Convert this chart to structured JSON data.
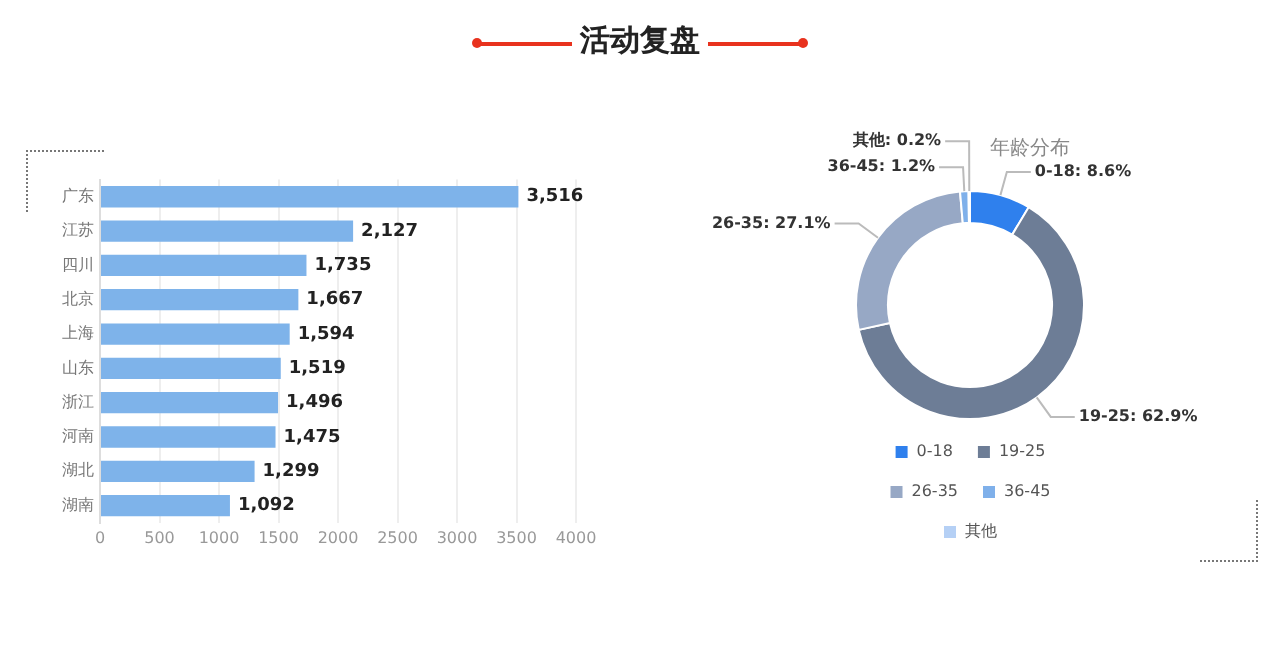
{
  "chart_data": [
    {
      "type": "bar",
      "title": "活动复盘",
      "orientation": "horizontal",
      "categories": [
        "广东",
        "江苏",
        "四川",
        "北京",
        "上海",
        "山东",
        "浙江",
        "河南",
        "湖北",
        "湖南"
      ],
      "values": [
        3516,
        2127,
        1735,
        1667,
        1594,
        1519,
        1496,
        1475,
        1299,
        1092
      ],
      "value_labels": [
        "3,516",
        "2,127",
        "1,735",
        "1,667",
        "1,594",
        "1,519",
        "1,496",
        "1,475",
        "1,299",
        "1,092"
      ],
      "color": "#7eb3ea",
      "xlim": [
        0,
        4000
      ],
      "xticks": [
        0,
        500,
        1000,
        1500,
        2000,
        2500,
        3000,
        3500,
        4000
      ],
      "grid": "x"
    },
    {
      "type": "donut",
      "title": "年龄分布",
      "categories": [
        "0-18",
        "19-25",
        "26-35",
        "36-45",
        "其他"
      ],
      "values": [
        8.6,
        62.9,
        27.1,
        1.2,
        0.2
      ],
      "value_labels": [
        "0-18: 8.6%",
        "19-25: 62.9%",
        "26-35: 27.1%",
        "36-45: 1.2%",
        "其他: 0.2%"
      ],
      "colors": [
        "#2f80ed",
        "#6d7d96",
        "#97a8c5",
        "#7fb0ea",
        "#b5d0f5"
      ],
      "legend": "bottom"
    }
  ]
}
